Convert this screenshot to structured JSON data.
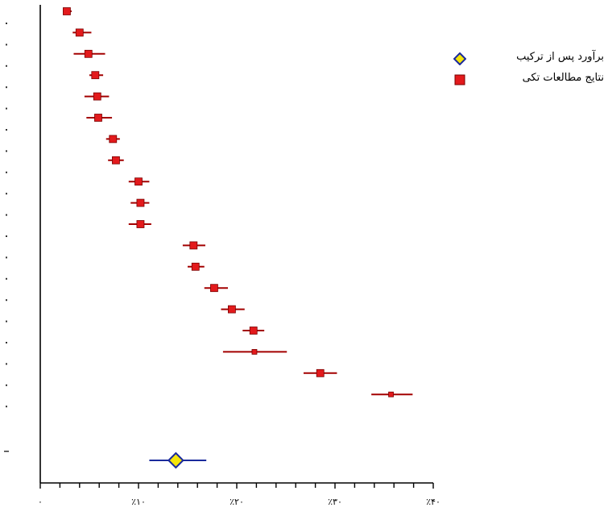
{
  "chart_data": {
    "type": "forest",
    "title": "",
    "xlabel": "",
    "ylabel": "",
    "xlim": [
      0,
      40
    ],
    "x_ticks": [
      0,
      10,
      20,
      30,
      40
    ],
    "x_tick_labels": [
      "۰",
      "٪۱۰",
      "٪۲۰",
      "٪۳۰",
      "٪۴۰"
    ],
    "grid": false,
    "legend_position": "top-right",
    "series": [
      {
        "name": "نتایج مطالعات تکی",
        "marker": "square",
        "color": "#e31a1c",
        "ci_color": "#a30000",
        "points": [
          {
            "est": 2.7,
            "low": 2.3,
            "high": 3.2
          },
          {
            "est": 4.0,
            "low": 3.3,
            "high": 5.2
          },
          {
            "est": 4.9,
            "low": 3.4,
            "high": 6.6
          },
          {
            "est": 5.6,
            "low": 5.0,
            "high": 6.4
          },
          {
            "est": 5.8,
            "low": 4.5,
            "high": 7.0
          },
          {
            "est": 5.9,
            "low": 4.7,
            "high": 7.3
          },
          {
            "est": 7.4,
            "low": 6.7,
            "high": 8.1
          },
          {
            "est": 7.7,
            "low": 6.9,
            "high": 8.5
          },
          {
            "est": 10.0,
            "low": 9.0,
            "high": 11.1
          },
          {
            "est": 10.2,
            "low": 9.2,
            "high": 11.1
          },
          {
            "est": 10.2,
            "low": 9.0,
            "high": 11.3
          },
          {
            "est": 15.6,
            "low": 14.5,
            "high": 16.8
          },
          {
            "est": 15.8,
            "low": 15.0,
            "high": 16.7
          },
          {
            "est": 17.7,
            "low": 16.7,
            "high": 19.1
          },
          {
            "est": 19.5,
            "low": 18.4,
            "high": 20.8
          },
          {
            "est": 21.7,
            "low": 20.6,
            "high": 22.8
          },
          {
            "est": 21.8,
            "low": 18.6,
            "high": 25.1
          },
          {
            "est": 28.5,
            "low": 26.8,
            "high": 30.2
          },
          {
            "est": 35.7,
            "low": 33.7,
            "high": 37.9
          }
        ]
      },
      {
        "name": "برآورد پس از ترکیب",
        "marker": "diamond",
        "color": "#f5e50a",
        "ci_color": "#1a2a9c",
        "points": [
          {
            "est": 13.8,
            "low": 11.1,
            "high": 16.9
          }
        ]
      }
    ]
  }
}
